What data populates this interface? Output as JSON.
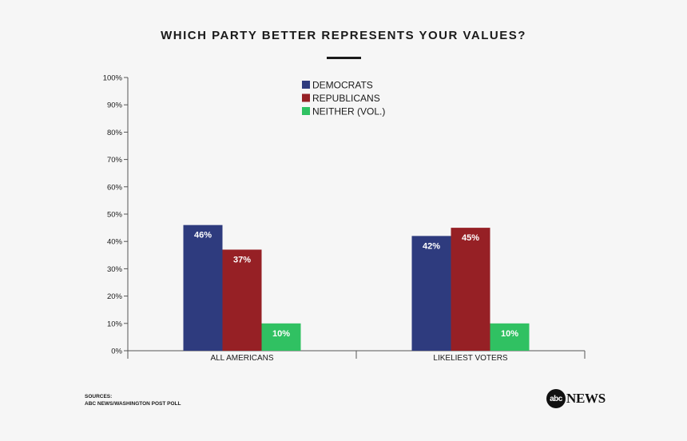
{
  "title": "WHICH PARTY BETTER REPRESENTS YOUR VALUES?",
  "sources": {
    "heading": "SOURCES:",
    "text": "ABC NEWS/WASHINGTON POST POLL"
  },
  "logo": {
    "mark": "abc",
    "word": "NEWS"
  },
  "colors": {
    "democrats": "#2e3b7e",
    "republicans": "#962025",
    "neither": "#30c162",
    "axis": "#555555"
  },
  "chart_data": {
    "type": "bar",
    "title": "WHICH PARTY BETTER REPRESENTS YOUR VALUES?",
    "categories": [
      "ALL AMERICANS",
      "LIKELIEST VOTERS"
    ],
    "series": [
      {
        "name": "DEMOCRATS",
        "values": [
          46,
          42
        ],
        "labels": [
          "46%",
          "42%"
        ]
      },
      {
        "name": "REPUBLICANS",
        "values": [
          37,
          45
        ],
        "labels": [
          "37%",
          "45%"
        ]
      },
      {
        "name": "NEITHER (VOL.)",
        "values": [
          10,
          10
        ],
        "labels": [
          "10%",
          "10%"
        ]
      }
    ],
    "ylim": [
      0,
      100
    ],
    "yticks": [
      "0%",
      "10%",
      "20%",
      "30%",
      "40%",
      "50%",
      "60%",
      "70%",
      "80%",
      "90%",
      "100%"
    ],
    "xlabel": "",
    "ylabel": "",
    "grid": false,
    "legend_position": "top-center"
  }
}
